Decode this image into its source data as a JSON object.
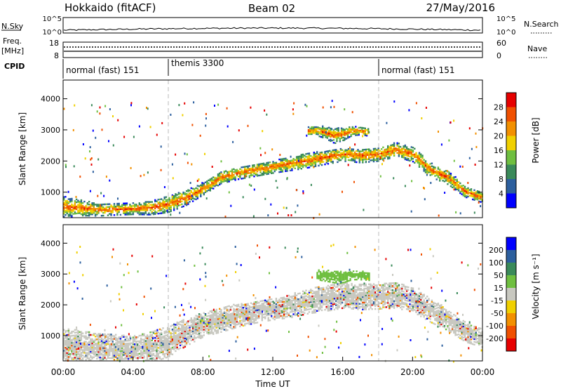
{
  "header": {
    "site": "Hokkaido (fitACF)",
    "beam": "Beam 02",
    "date": "27/May/2016"
  },
  "summary_panels": {
    "nsky_label": "N.Sky",
    "nsky_ticks": [
      "10^5",
      "10^0"
    ],
    "nsearch_label": "N.Search",
    "nsearch_ticks": [
      "10^5",
      "10^0"
    ],
    "freq_label_top": "Freq.",
    "freq_label_bottom": "[MHz]",
    "freq_ticks": [
      "18",
      "8"
    ],
    "nave_label": "Nave",
    "nave_ticks": [
      "60",
      "0"
    ],
    "cpid_label": "CPID",
    "cpid_segments": [
      {
        "label": "normal (fast) 151",
        "start": 0,
        "end": 6
      },
      {
        "label": "themis 3300",
        "start": 6,
        "end": 18
      },
      {
        "label": "normal (fast) 151",
        "start": 18,
        "end": 24
      }
    ]
  },
  "chart_data": [
    {
      "type": "heatmap",
      "name": "power",
      "ylabel": "Slant Range [km]",
      "ylim": [
        180,
        4600
      ],
      "yticks": [
        "1000",
        "2000",
        "3000",
        "4000"
      ],
      "colorbar_label": "Power [dB]",
      "colorbar_ticks": [
        "4",
        "8",
        "12",
        "16",
        "20",
        "24",
        "28"
      ],
      "colors": [
        "#0000ff",
        "#2c5f9e",
        "#3a8a5a",
        "#6fbf40",
        "#f0d000",
        "#f29000",
        "#f05000",
        "#e60000"
      ],
      "bands": [
        {
          "times": [
            0,
            1,
            2,
            3,
            4,
            5,
            6,
            7,
            8,
            9,
            10,
            11,
            12,
            13,
            14,
            15,
            16,
            17,
            18,
            19,
            20,
            21,
            22,
            23,
            24
          ],
          "center": [
            500,
            480,
            420,
            430,
            450,
            480,
            600,
            800,
            1100,
            1450,
            1600,
            1700,
            1800,
            1900,
            2000,
            2100,
            2200,
            2150,
            2200,
            2350,
            2200,
            1700,
            1450,
            1000,
            800
          ],
          "width": [
            350,
            250,
            200,
            180,
            180,
            220,
            260,
            240,
            200,
            190,
            200,
            200,
            200,
            220,
            230,
            220,
            220,
            220,
            220,
            230,
            240,
            230,
            220,
            180,
            160
          ]
        },
        {
          "times": [
            14,
            14.5,
            15,
            15.5,
            16,
            16.5,
            17,
            17.5
          ],
          "center": [
            2950,
            2950,
            2900,
            2800,
            2850,
            2950,
            2950,
            2900
          ],
          "width": [
            150,
            150,
            200,
            250,
            200,
            150,
            120,
            120
          ]
        }
      ]
    },
    {
      "type": "heatmap",
      "name": "velocity",
      "ylabel": "Slant Range [km]",
      "ylim": [
        180,
        4600
      ],
      "yticks": [
        "1000",
        "2000",
        "3000",
        "4000"
      ],
      "xlabel": "Time UT",
      "xticks": [
        "00:00",
        "04:00",
        "08:00",
        "12:00",
        "16:00",
        "20:00",
        "00:00"
      ],
      "colorbar_label": "Velocity [m s⁻¹]",
      "colorbar_ticks": [
        "-200",
        "-100",
        "-50",
        "-15",
        "15",
        "50",
        "100",
        "200"
      ],
      "colors": [
        "#e60000",
        "#f05000",
        "#f29000",
        "#f0d000",
        "#c8c8c0",
        "#6fbf40",
        "#3a8a5a",
        "#2c5f9e",
        "#0000ff"
      ],
      "bands": [
        {
          "times": [
            0,
            1,
            2,
            3,
            4,
            5,
            6,
            7,
            8,
            9,
            10,
            11,
            12,
            13,
            14,
            15,
            16,
            17,
            18,
            19,
            20,
            21,
            22,
            23,
            24
          ],
          "center": [
            600,
            620,
            550,
            520,
            520,
            600,
            800,
            1100,
            1350,
            1500,
            1650,
            1750,
            1850,
            1950,
            2100,
            2200,
            2300,
            2250,
            2250,
            2300,
            2150,
            1800,
            1500,
            1100,
            900
          ],
          "width": [
            600,
            550,
            500,
            500,
            450,
            500,
            500,
            450,
            400,
            400,
            380,
            350,
            350,
            380,
            400,
            420,
            420,
            420,
            400,
            420,
            400,
            380,
            350,
            320,
            300
          ]
        },
        {
          "times": [
            14.5,
            15,
            15.5,
            16,
            16.5,
            17,
            17.5
          ],
          "center": [
            2950,
            2950,
            2900,
            2900,
            2950,
            2950,
            2900
          ],
          "width": [
            150,
            200,
            200,
            200,
            150,
            150,
            120
          ]
        }
      ]
    }
  ]
}
